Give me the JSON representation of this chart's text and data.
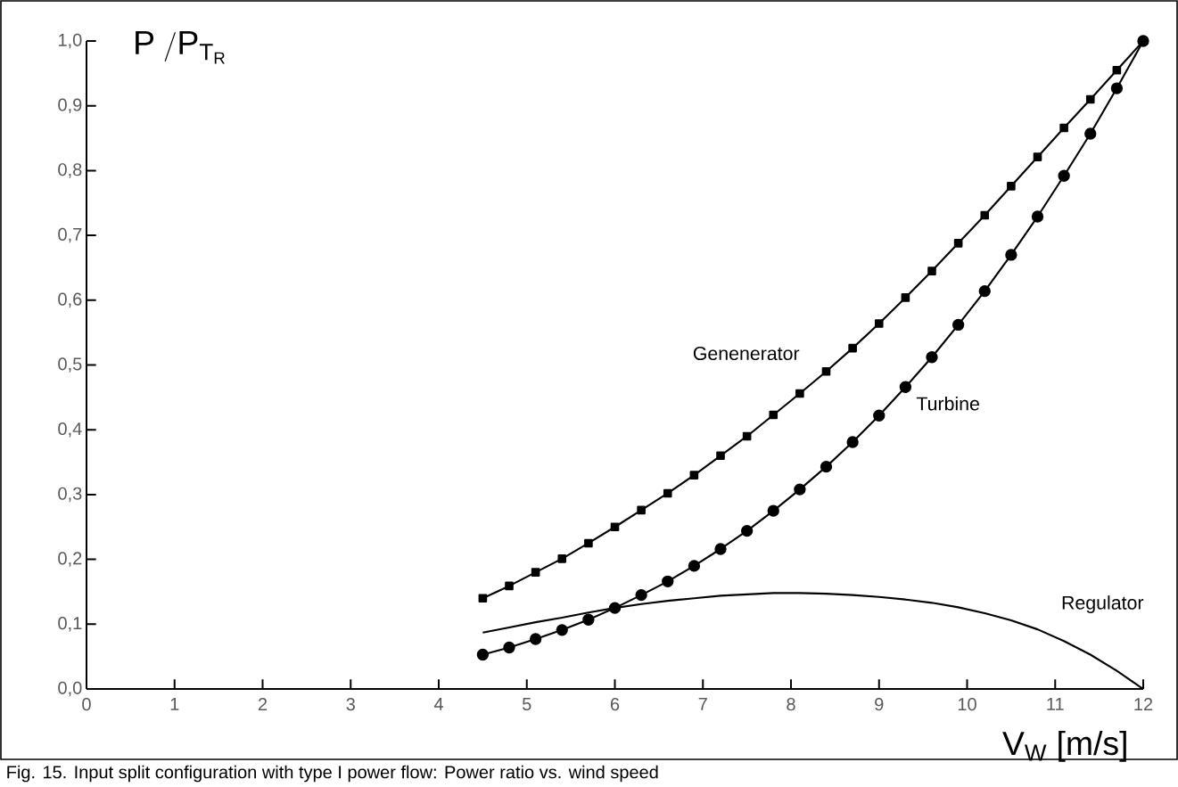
{
  "chart_data": {
    "type": "line",
    "ylabel": "\\mathrm{P\\;/P_{T_{R}}}",
    "xlabel": "V$_{W}$ [m/s]",
    "annotations": [
      "Fig. 15. Input  split configuration with type I power flow: Power  ratio vs. wind speed"
    ],
    "x": [
      4.5,
      4.8,
      5.1,
      5.4,
      5.7,
      6.0,
      6.3,
      6.6,
      6.9,
      7.2,
      7.5,
      7.8,
      8.1,
      8.4,
      8.7,
      9.0,
      9.3,
      9.6,
      9.9,
      10.2,
      10.5,
      10.8,
      11.1,
      11.4,
      11.7,
      12.0
    ],
    "series": [
      {
        "name": "Genenerator",
        "color": "#000000",
        "marker": "square",
        "values": [
          0.14,
          0.159,
          0.18,
          0.201,
          0.225,
          0.25,
          0.276,
          0.302,
          0.33,
          0.36,
          0.39,
          0.423,
          0.456,
          0.49,
          0.526,
          0.564,
          0.604,
          0.645,
          0.688,
          0.731,
          0.776,
          0.821,
          0.866,
          0.91,
          0.955,
          1.0
        ]
      },
      {
        "name": "Turbine",
        "color": "#000000",
        "marker": "circle",
        "values": [
          0.053,
          0.064,
          0.077,
          0.091,
          0.107,
          0.125,
          0.145,
          0.166,
          0.19,
          0.216,
          0.244,
          0.275,
          0.308,
          0.343,
          0.381,
          0.422,
          0.466,
          0.512,
          0.562,
          0.614,
          0.67,
          0.729,
          0.792,
          0.857,
          0.927,
          1.0
        ]
      },
      {
        "name": "Regulator",
        "color": "#000000",
        "marker": "none",
        "values": [
          0.087,
          0.095,
          0.103,
          0.11,
          0.118,
          0.125,
          0.131,
          0.136,
          0.14,
          0.144,
          0.146,
          0.148,
          0.148,
          0.147,
          0.145,
          0.142,
          0.138,
          0.133,
          0.126,
          0.117,
          0.106,
          0.092,
          0.074,
          0.053,
          0.028,
          0.0
        ]
      }
    ],
    "xlim": [
      0,
      12
    ],
    "ylim": [
      0,
      1
    ],
    "xticks": [
      0,
      1,
      2,
      3,
      4,
      5,
      6,
      7,
      8,
      9,
      10,
      11,
      12
    ],
    "yticks": [
      {
        "value": 0,
        "label": "0,0"
      },
      {
        "value": 0.1,
        "label": "0,1"
      },
      {
        "value": 0.2,
        "label": "0,2"
      },
      {
        "value": 0.3,
        "label": "0,3"
      },
      {
        "value": 0.4,
        "label": "0,4"
      },
      {
        "value": 0.5,
        "label": "0,5"
      },
      {
        "value": 0.6,
        "label": "0,6"
      },
      {
        "value": 0.7,
        "label": "0,7"
      },
      {
        "value": 0.8,
        "label": "0,8"
      },
      {
        "value": 0.9,
        "label": "0,9"
      },
      {
        "value": 1,
        "label": "1,0"
      }
    ]
  }
}
